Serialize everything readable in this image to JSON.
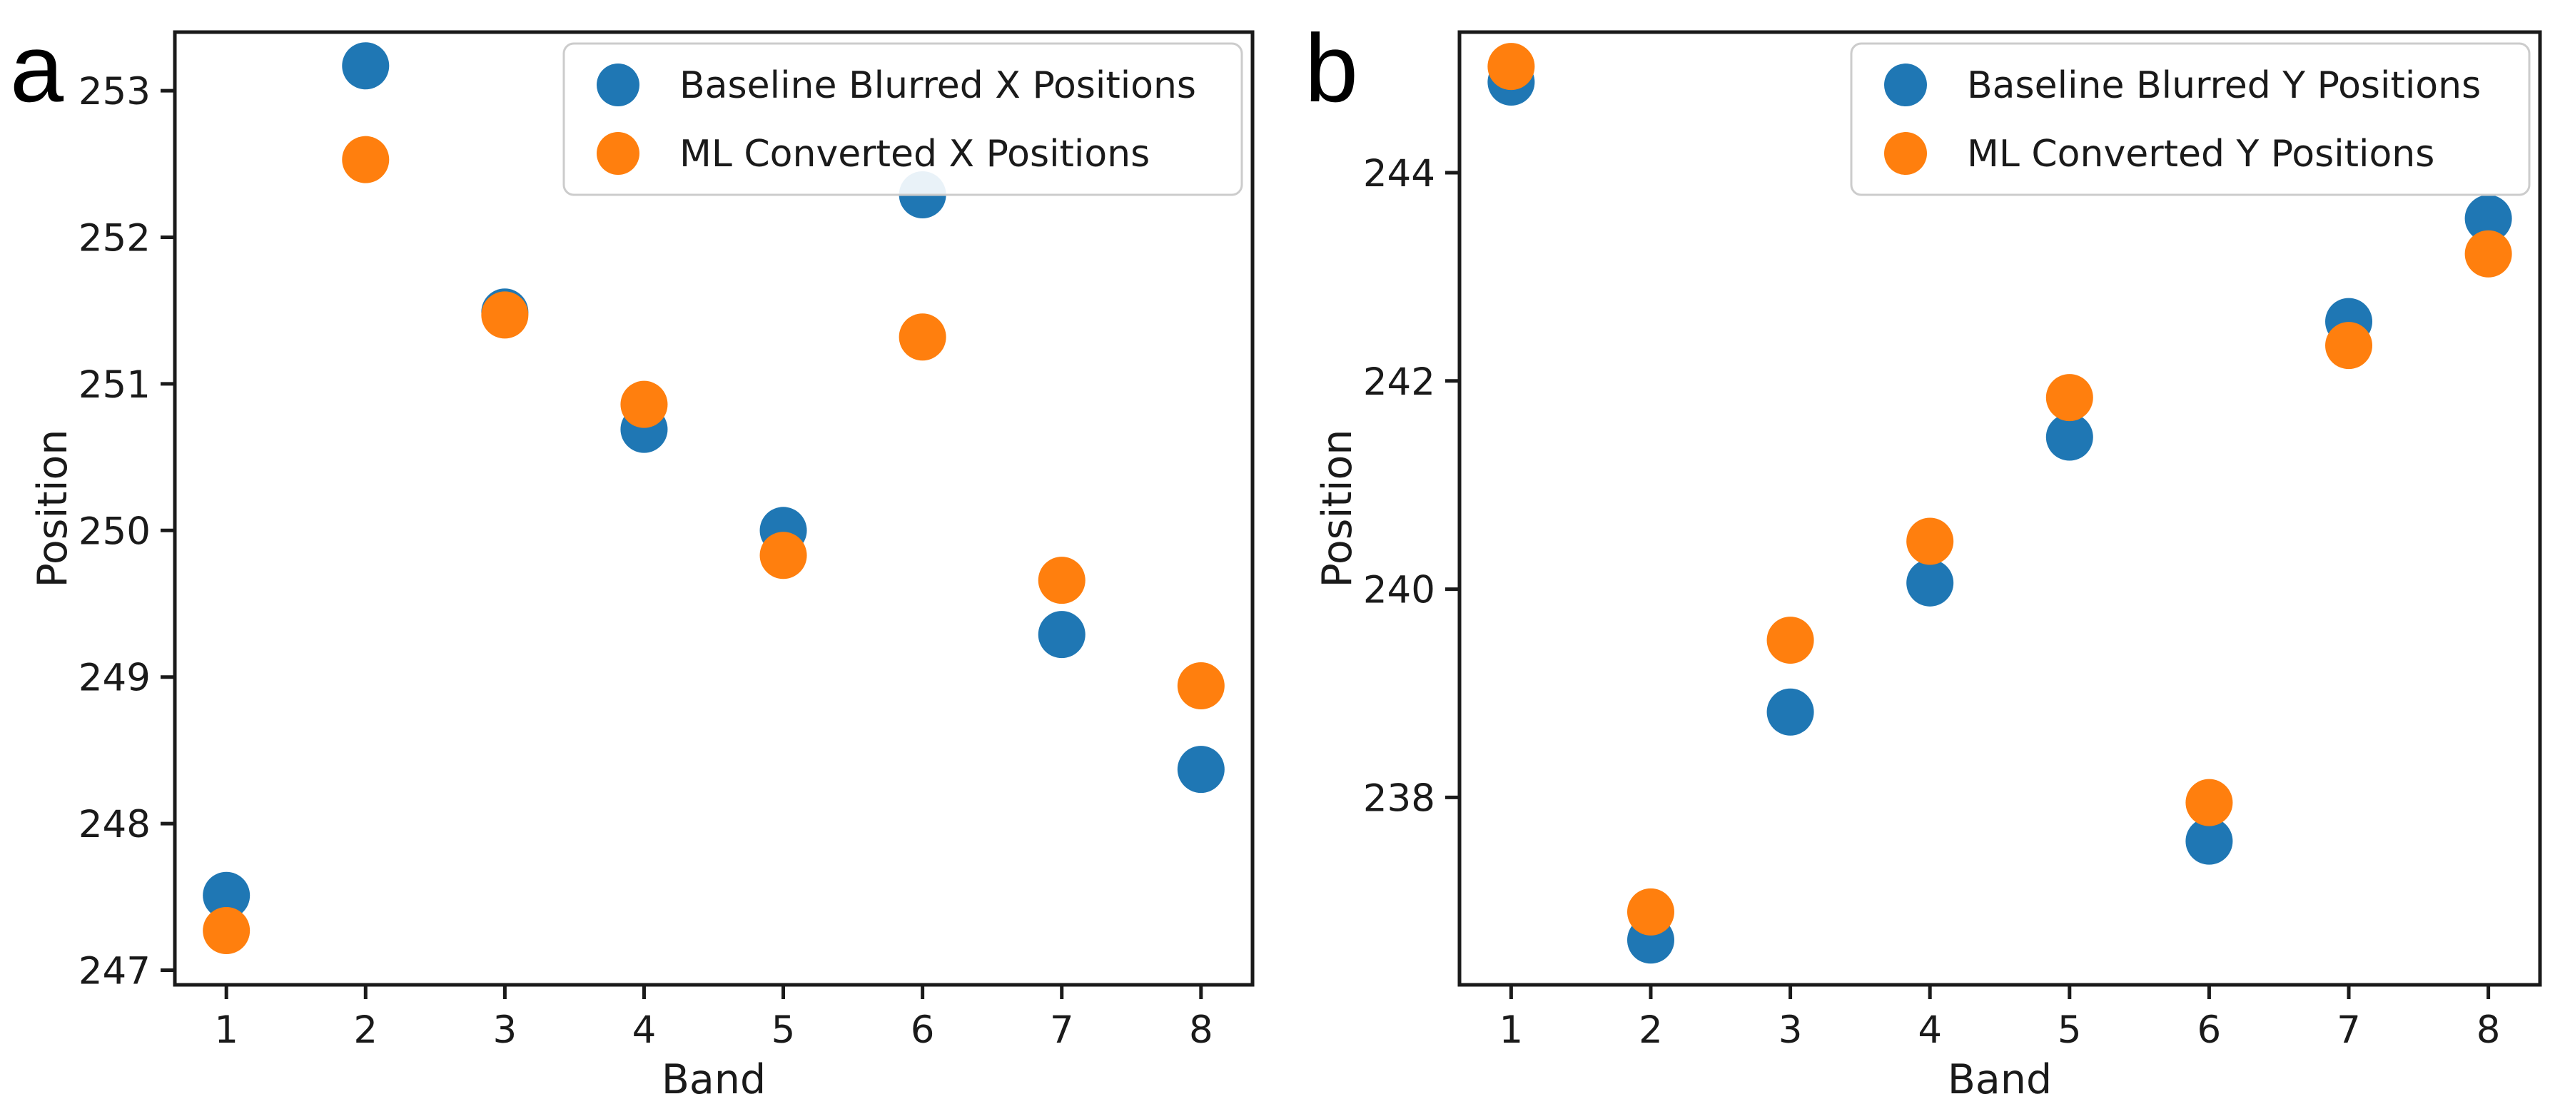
{
  "figure": {
    "background": "#ffffff",
    "panels": [
      {
        "panel_label": "a"
      },
      {
        "panel_label": "b"
      }
    ],
    "colors": {
      "baseline_blue": "#1f77b4",
      "ml_orange": "#ff7f0e",
      "ink": "#1a1a1a",
      "legend_border": "#cccccc"
    }
  },
  "chart_data": [
    {
      "type": "scatter",
      "panel": "a",
      "title": "",
      "xlabel": "Band",
      "ylabel": "Position",
      "x": [
        1,
        2,
        3,
        4,
        5,
        6,
        7,
        8
      ],
      "series": [
        {
          "name": "Baseline Blurred X Positions",
          "color": "#1f77b4",
          "values": [
            247.51,
            253.17,
            251.49,
            250.69,
            250.0,
            252.29,
            249.29,
            248.37
          ]
        },
        {
          "name": "ML Converted X Positions",
          "color": "#ff7f0e",
          "values": [
            247.27,
            252.53,
            251.47,
            250.86,
            249.83,
            251.32,
            249.66,
            248.94
          ]
        }
      ],
      "xlim": [
        0.63,
        8.37
      ],
      "ylim": [
        246.9,
        253.4
      ],
      "xticks": [
        1,
        2,
        3,
        4,
        5,
        6,
        7,
        8
      ],
      "yticks": [
        247,
        248,
        249,
        250,
        251,
        252,
        253
      ],
      "legend_position": "upper right",
      "grid": false
    },
    {
      "type": "scatter",
      "panel": "b",
      "title": "",
      "xlabel": "Band",
      "ylabel": "Position",
      "x": [
        1,
        2,
        3,
        4,
        5,
        6,
        7,
        8
      ],
      "series": [
        {
          "name": "Baseline Blurred Y Positions",
          "color": "#1f77b4",
          "values": [
            244.87,
            236.63,
            238.82,
            240.06,
            241.46,
            237.58,
            242.57,
            243.56
          ]
        },
        {
          "name": "ML Converted Y Positions",
          "color": "#ff7f0e",
          "values": [
            245.02,
            236.9,
            239.51,
            240.46,
            241.84,
            237.95,
            242.34,
            243.22
          ]
        }
      ],
      "xlim": [
        0.63,
        8.37
      ],
      "ylim": [
        236.2,
        245.35
      ],
      "xticks": [
        1,
        2,
        3,
        4,
        5,
        6,
        7,
        8
      ],
      "yticks": [
        238,
        240,
        242,
        244
      ],
      "legend_position": "upper right",
      "grid": false
    }
  ]
}
